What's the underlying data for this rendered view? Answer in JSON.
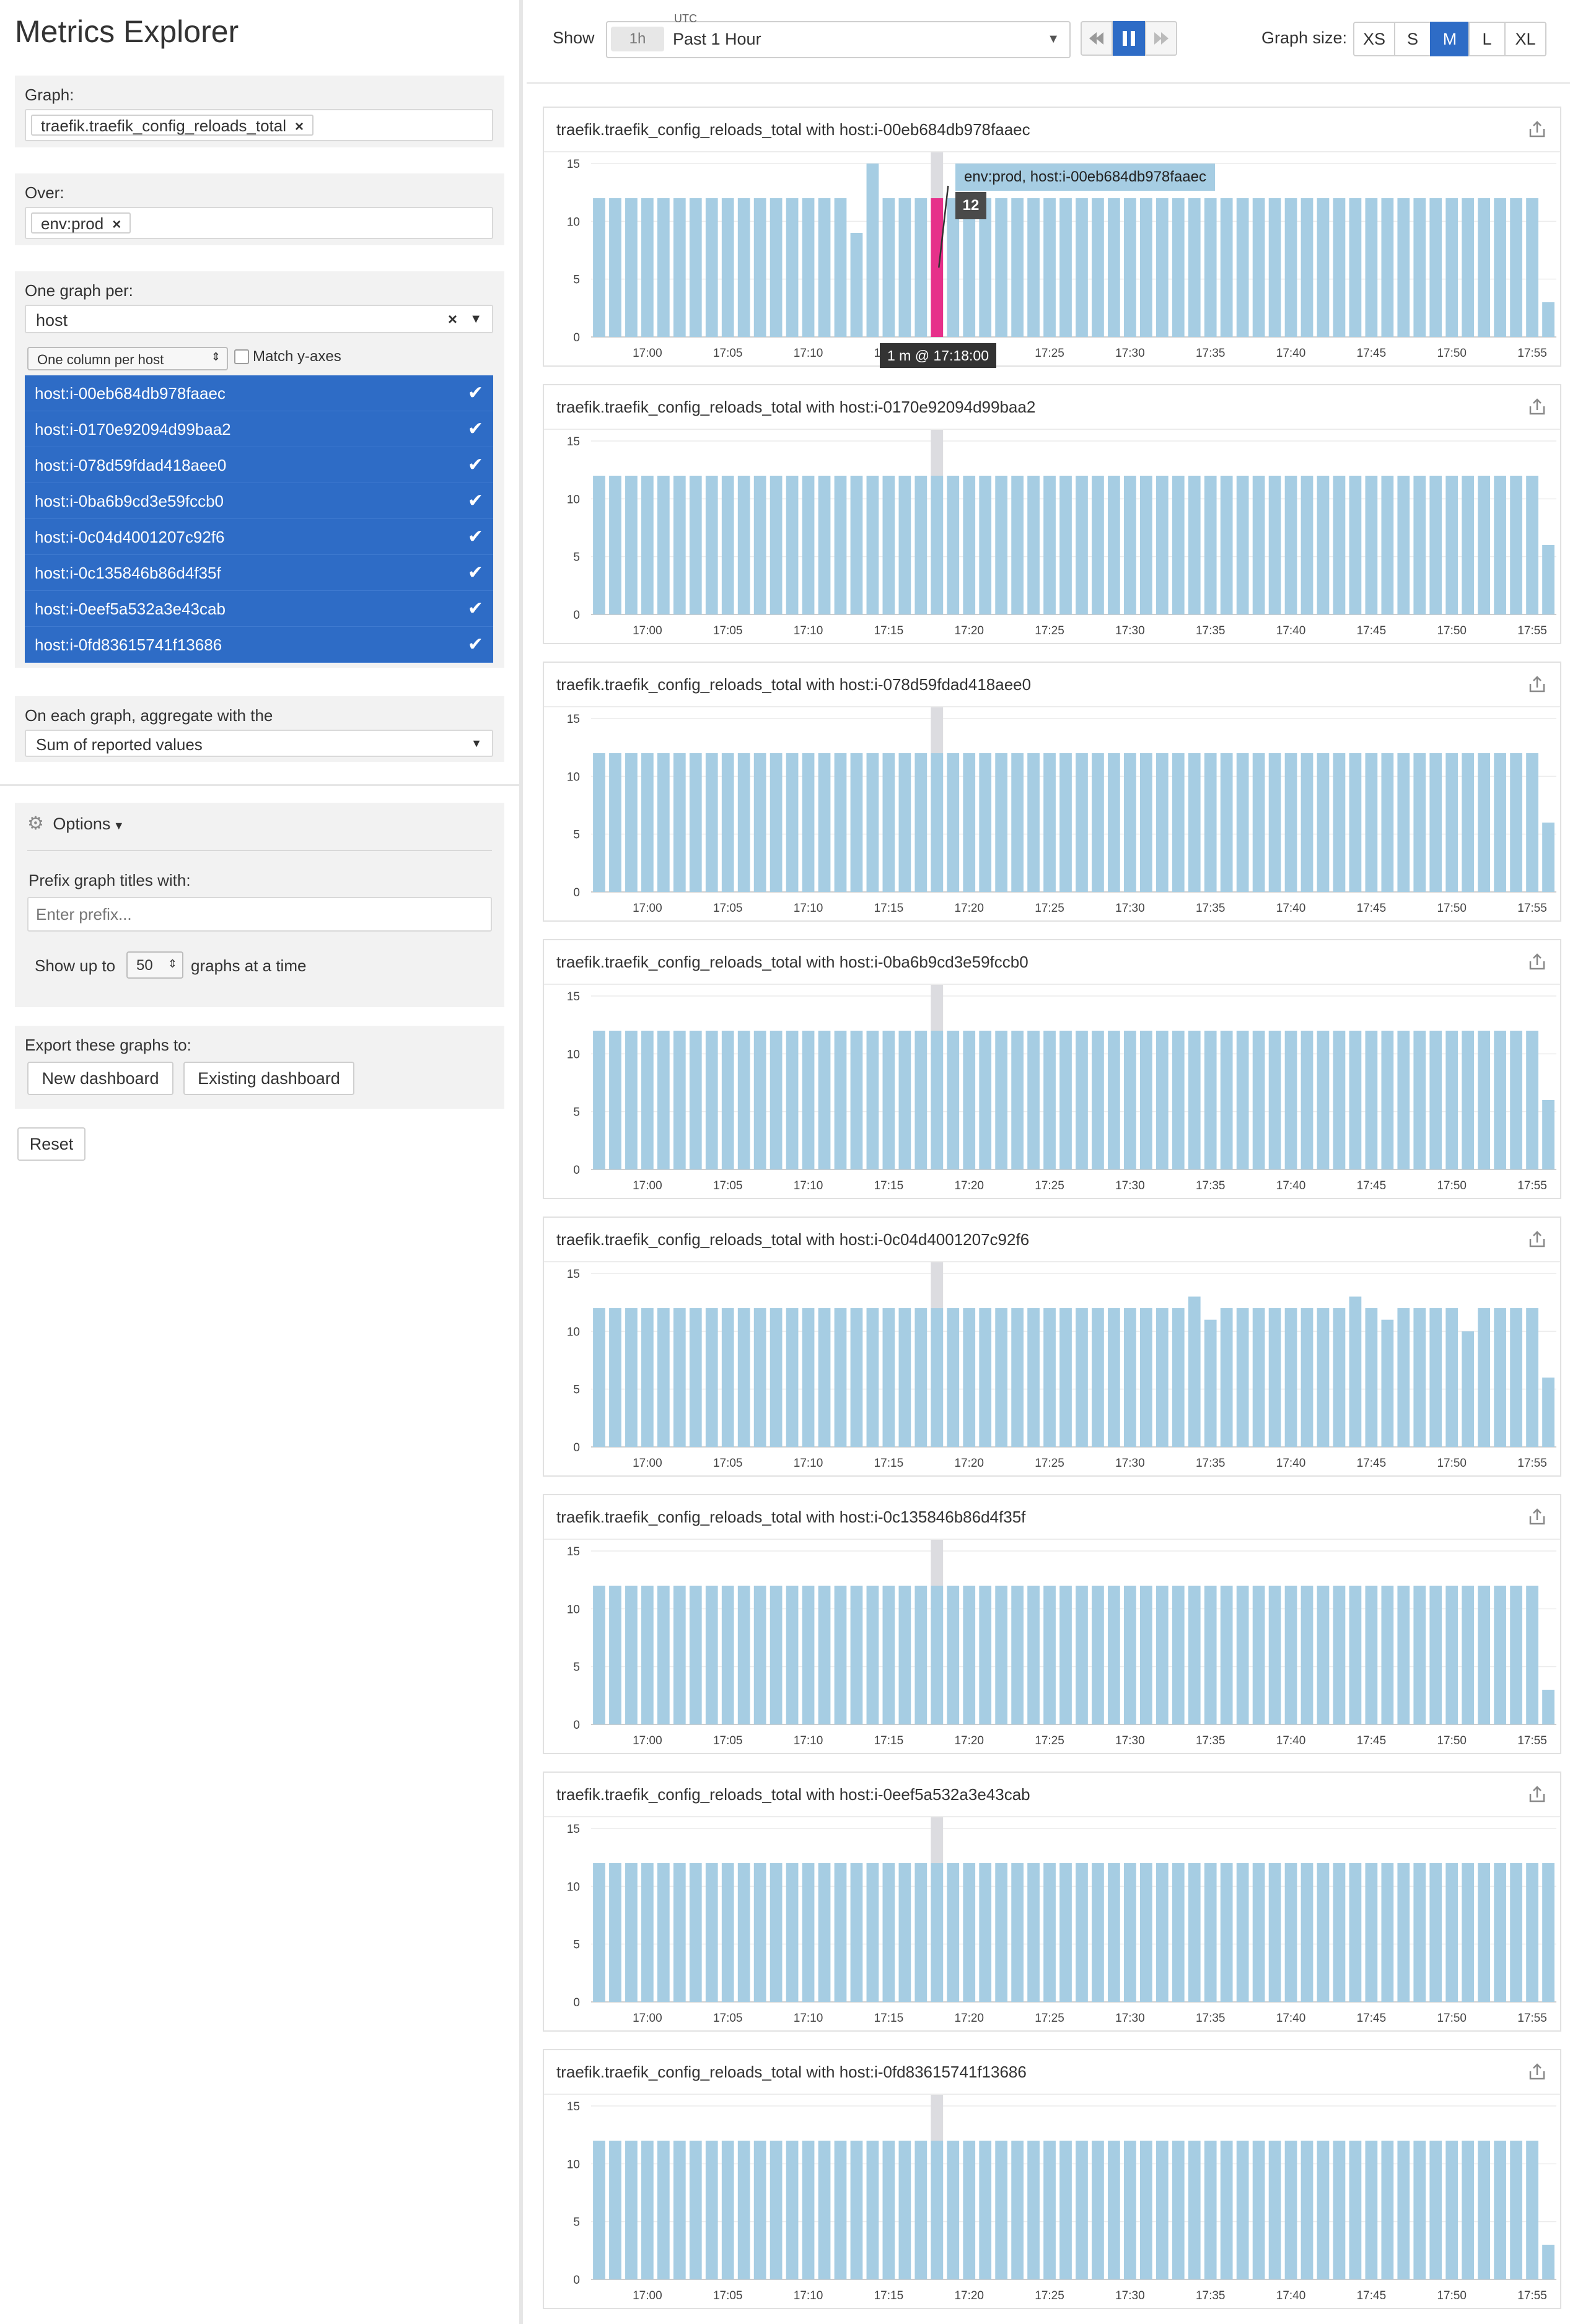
{
  "sidebar": {
    "title": "Metrics Explorer",
    "graph_label": "Graph:",
    "graph_token": "traefik.traefik_config_reloads_total",
    "over_label": "Over:",
    "over_token": "env:prod",
    "one_graph_per_label": "One graph per:",
    "one_graph_per_value": "host",
    "column_select": "One column per host",
    "match_y_axes": "Match y-axes",
    "hosts": [
      "host:i-00eb684db978faaec",
      "host:i-0170e92094d99baa2",
      "host:i-078d59fdad418aee0",
      "host:i-0ba6b9cd3e59fccb0",
      "host:i-0c04d4001207c92f6",
      "host:i-0c135846b86d4f35f",
      "host:i-0eef5a532a3e43cab",
      "host:i-0fd83615741f13686"
    ],
    "aggregate_label": "On each graph, aggregate with the",
    "aggregate_value": "Sum of reported values",
    "options_label": "Options",
    "prefix_label": "Prefix graph titles with:",
    "prefix_placeholder": "Enter prefix...",
    "show_up_to": "Show up to",
    "show_count": "50",
    "graphs_at_a_time": "graphs at a time",
    "export_label": "Export these graphs to:",
    "new_dashboard": "New dashboard",
    "existing_dashboard": "Existing dashboard",
    "reset": "Reset"
  },
  "topbar": {
    "show_label": "Show",
    "range_short": "1h",
    "utc_label": "UTC",
    "range_long": "Past 1 Hour",
    "graph_size_label": "Graph size:",
    "sizes": [
      "XS",
      "S",
      "M",
      "L",
      "XL"
    ],
    "active_size": "M"
  },
  "tooltip": {
    "series": "env:prod, host:i-00eb684db978faaec",
    "value": "12",
    "time": "1 m @ 17:18:00"
  },
  "colors": {
    "bar": "#a6cde3",
    "highlight": "#e6308a",
    "marker": "#dcdce0",
    "accent": "#2e6cc6"
  },
  "chart_data": [
    {
      "type": "bar",
      "title": "traefik.traefik_config_reloads_total with host:i-00eb684db978faaec",
      "x_ticks": [
        "17:00",
        "17:05",
        "17:10",
        "17:15",
        "17:20",
        "17:25",
        "17:30",
        "17:35",
        "17:40",
        "17:45",
        "17:50",
        "17:55"
      ],
      "ylim": [
        0,
        15
      ],
      "y_ticks": [
        0,
        5,
        10,
        15
      ],
      "minutes": [
        "16:57",
        "16:58",
        "16:59",
        "17:00",
        "17:01",
        "17:02",
        "17:03",
        "17:04",
        "17:05",
        "17:06",
        "17:07",
        "17:08",
        "17:09",
        "17:10",
        "17:11",
        "17:12",
        "17:13",
        "17:14",
        "17:15",
        "17:16",
        "17:17",
        "17:18",
        "17:19",
        "17:20",
        "17:21",
        "17:22",
        "17:23",
        "17:24",
        "17:25",
        "17:26",
        "17:27",
        "17:28",
        "17:29",
        "17:30",
        "17:31",
        "17:32",
        "17:33",
        "17:34",
        "17:35",
        "17:36",
        "17:37",
        "17:38",
        "17:39",
        "17:40",
        "17:41",
        "17:42",
        "17:43",
        "17:44",
        "17:45",
        "17:46",
        "17:47",
        "17:48",
        "17:49",
        "17:50",
        "17:51",
        "17:52",
        "17:53",
        "17:54",
        "17:55",
        "17:56"
      ],
      "values": [
        12,
        12,
        12,
        12,
        12,
        12,
        12,
        12,
        12,
        12,
        12,
        12,
        12,
        12,
        12,
        12,
        9,
        15,
        12,
        12,
        12,
        12,
        12,
        12,
        12,
        12,
        12,
        12,
        12,
        12,
        12,
        12,
        12,
        12,
        12,
        12,
        12,
        12,
        12,
        12,
        12,
        12,
        12,
        12,
        12,
        12,
        12,
        12,
        12,
        12,
        12,
        12,
        12,
        12,
        12,
        12,
        12,
        12,
        12,
        3
      ],
      "highlight_index": 21
    },
    {
      "type": "bar",
      "title": "traefik.traefik_config_reloads_total with host:i-0170e92094d99baa2",
      "x_ticks": [
        "17:00",
        "17:05",
        "17:10",
        "17:15",
        "17:20",
        "17:25",
        "17:30",
        "17:35",
        "17:40",
        "17:45",
        "17:50",
        "17:55"
      ],
      "ylim": [
        0,
        15
      ],
      "y_ticks": [
        0,
        5,
        10,
        15
      ],
      "values": [
        12,
        12,
        12,
        12,
        12,
        12,
        12,
        12,
        12,
        12,
        12,
        12,
        12,
        12,
        12,
        12,
        12,
        12,
        12,
        12,
        12,
        12,
        12,
        12,
        12,
        12,
        12,
        12,
        12,
        12,
        12,
        12,
        12,
        12,
        12,
        12,
        12,
        12,
        12,
        12,
        12,
        12,
        12,
        12,
        12,
        12,
        12,
        12,
        12,
        12,
        12,
        12,
        12,
        12,
        12,
        12,
        12,
        12,
        12,
        6
      ]
    },
    {
      "type": "bar",
      "title": "traefik.traefik_config_reloads_total with host:i-078d59fdad418aee0",
      "x_ticks": [
        "17:00",
        "17:05",
        "17:10",
        "17:15",
        "17:20",
        "17:25",
        "17:30",
        "17:35",
        "17:40",
        "17:45",
        "17:50",
        "17:55"
      ],
      "ylim": [
        0,
        15
      ],
      "y_ticks": [
        0,
        5,
        10,
        15
      ],
      "values": [
        12,
        12,
        12,
        12,
        12,
        12,
        12,
        12,
        12,
        12,
        12,
        12,
        12,
        12,
        12,
        12,
        12,
        12,
        12,
        12,
        12,
        12,
        12,
        12,
        12,
        12,
        12,
        12,
        12,
        12,
        12,
        12,
        12,
        12,
        12,
        12,
        12,
        12,
        12,
        12,
        12,
        12,
        12,
        12,
        12,
        12,
        12,
        12,
        12,
        12,
        12,
        12,
        12,
        12,
        12,
        12,
        12,
        12,
        12,
        6
      ]
    },
    {
      "type": "bar",
      "title": "traefik.traefik_config_reloads_total with host:i-0ba6b9cd3e59fccb0",
      "x_ticks": [
        "17:00",
        "17:05",
        "17:10",
        "17:15",
        "17:20",
        "17:25",
        "17:30",
        "17:35",
        "17:40",
        "17:45",
        "17:50",
        "17:55"
      ],
      "ylim": [
        0,
        15
      ],
      "y_ticks": [
        0,
        5,
        10,
        15
      ],
      "values": [
        12,
        12,
        12,
        12,
        12,
        12,
        12,
        12,
        12,
        12,
        12,
        12,
        12,
        12,
        12,
        12,
        12,
        12,
        12,
        12,
        12,
        12,
        12,
        12,
        12,
        12,
        12,
        12,
        12,
        12,
        12,
        12,
        12,
        12,
        12,
        12,
        12,
        12,
        12,
        12,
        12,
        12,
        12,
        12,
        12,
        12,
        12,
        12,
        12,
        12,
        12,
        12,
        12,
        12,
        12,
        12,
        12,
        12,
        12,
        6
      ]
    },
    {
      "type": "bar",
      "title": "traefik.traefik_config_reloads_total with host:i-0c04d4001207c92f6",
      "x_ticks": [
        "17:00",
        "17:05",
        "17:10",
        "17:15",
        "17:20",
        "17:25",
        "17:30",
        "17:35",
        "17:40",
        "17:45",
        "17:50",
        "17:55"
      ],
      "ylim": [
        0,
        15
      ],
      "y_ticks": [
        0,
        5,
        10,
        15
      ],
      "values": [
        12,
        12,
        12,
        12,
        12,
        12,
        12,
        12,
        12,
        12,
        12,
        12,
        12,
        12,
        12,
        12,
        12,
        12,
        12,
        12,
        12,
        12,
        12,
        12,
        12,
        12,
        12,
        12,
        12,
        12,
        12,
        12,
        12,
        12,
        12,
        12,
        12,
        13,
        11,
        12,
        12,
        12,
        12,
        12,
        12,
        12,
        12,
        13,
        12,
        11,
        12,
        12,
        12,
        12,
        10,
        12,
        12,
        12,
        12,
        6
      ]
    },
    {
      "type": "bar",
      "title": "traefik.traefik_config_reloads_total with host:i-0c135846b86d4f35f",
      "x_ticks": [
        "17:00",
        "17:05",
        "17:10",
        "17:15",
        "17:20",
        "17:25",
        "17:30",
        "17:35",
        "17:40",
        "17:45",
        "17:50",
        "17:55"
      ],
      "ylim": [
        0,
        15
      ],
      "y_ticks": [
        0,
        5,
        10,
        15
      ],
      "values": [
        12,
        12,
        12,
        12,
        12,
        12,
        12,
        12,
        12,
        12,
        12,
        12,
        12,
        12,
        12,
        12,
        12,
        12,
        12,
        12,
        12,
        12,
        12,
        12,
        12,
        12,
        12,
        12,
        12,
        12,
        12,
        12,
        12,
        12,
        12,
        12,
        12,
        12,
        12,
        12,
        12,
        12,
        12,
        12,
        12,
        12,
        12,
        12,
        12,
        12,
        12,
        12,
        12,
        12,
        12,
        12,
        12,
        12,
        12,
        3
      ]
    },
    {
      "type": "bar",
      "title": "traefik.traefik_config_reloads_total with host:i-0eef5a532a3e43cab",
      "x_ticks": [
        "17:00",
        "17:05",
        "17:10",
        "17:15",
        "17:20",
        "17:25",
        "17:30",
        "17:35",
        "17:40",
        "17:45",
        "17:50",
        "17:55"
      ],
      "ylim": [
        0,
        15
      ],
      "y_ticks": [
        0,
        5,
        10,
        15
      ],
      "values": [
        12,
        12,
        12,
        12,
        12,
        12,
        12,
        12,
        12,
        12,
        12,
        12,
        12,
        12,
        12,
        12,
        12,
        12,
        12,
        12,
        12,
        12,
        12,
        12,
        12,
        12,
        12,
        12,
        12,
        12,
        12,
        12,
        12,
        12,
        12,
        12,
        12,
        12,
        12,
        12,
        12,
        12,
        12,
        12,
        12,
        12,
        12,
        12,
        12,
        12,
        12,
        12,
        12,
        12,
        12,
        12,
        12,
        12,
        12,
        12
      ]
    },
    {
      "type": "bar",
      "title": "traefik.traefik_config_reloads_total with host:i-0fd83615741f13686",
      "x_ticks": [
        "17:00",
        "17:05",
        "17:10",
        "17:15",
        "17:20",
        "17:25",
        "17:30",
        "17:35",
        "17:40",
        "17:45",
        "17:50",
        "17:55"
      ],
      "ylim": [
        0,
        15
      ],
      "y_ticks": [
        0,
        5,
        10,
        15
      ],
      "values": [
        12,
        12,
        12,
        12,
        12,
        12,
        12,
        12,
        12,
        12,
        12,
        12,
        12,
        12,
        12,
        12,
        12,
        12,
        12,
        12,
        12,
        12,
        12,
        12,
        12,
        12,
        12,
        12,
        12,
        12,
        12,
        12,
        12,
        12,
        12,
        12,
        12,
        12,
        12,
        12,
        12,
        12,
        12,
        12,
        12,
        12,
        12,
        12,
        12,
        12,
        12,
        12,
        12,
        12,
        12,
        12,
        12,
        12,
        12,
        3
      ]
    }
  ]
}
